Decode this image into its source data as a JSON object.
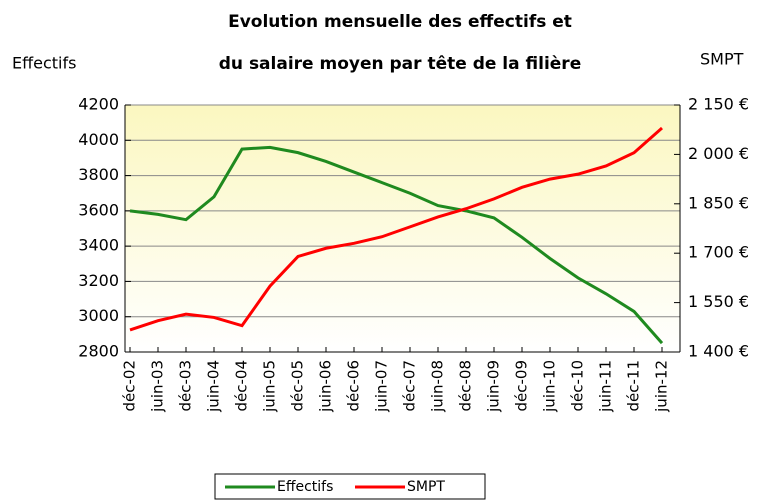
{
  "chart_data": {
    "type": "line",
    "title": [
      "Evolution mensuelle des effectifs et",
      "du salaire moyen par tête de la filière"
    ],
    "ylabel": "Effectifs",
    "y2label": "SMPT",
    "categories": [
      "déc-02",
      "juin-03",
      "déc-03",
      "juin-04",
      "déc-04",
      "juin-05",
      "déc-05",
      "juin-06",
      "déc-06",
      "juin-07",
      "déc-07",
      "juin-08",
      "déc-08",
      "juin-09",
      "déc-09",
      "juin-10",
      "déc-10",
      "juin-11",
      "déc-11",
      "juin-12"
    ],
    "series": [
      {
        "name": "Effectifs",
        "color": "#1f8a1f",
        "values": [
          3600,
          3580,
          3550,
          3680,
          3950,
          3960,
          3930,
          3880,
          3820,
          3760,
          3700,
          3630,
          3600,
          3560,
          3450,
          3330,
          3220,
          3130,
          3030,
          2850
        ]
      },
      {
        "name": "SMPT",
        "color": "#ff0000",
        "axis": "y2",
        "values": [
          1467,
          1495,
          1515,
          1505,
          1480,
          1600,
          1690,
          1715,
          1730,
          1750,
          1780,
          1810,
          1835,
          1865,
          1900,
          1925,
          1940,
          1965,
          2005,
          2080
        ]
      }
    ],
    "ylim": [
      2800,
      4200
    ],
    "yticks": [
      2800,
      3000,
      3200,
      3400,
      3600,
      3800,
      4000,
      4200
    ],
    "y2lim": [
      1400,
      2150
    ],
    "y2ticks": [
      {
        "value": 1400,
        "label": "1 400 €"
      },
      {
        "value": 1550,
        "label": "1 550 €"
      },
      {
        "value": 1700,
        "label": "1 700 €"
      },
      {
        "value": 1850,
        "label": "1 850 €"
      },
      {
        "value": 2000,
        "label": "2 000 €"
      },
      {
        "value": 2150,
        "label": "2 150 €"
      }
    ],
    "grid": true,
    "legend": "bottom"
  }
}
